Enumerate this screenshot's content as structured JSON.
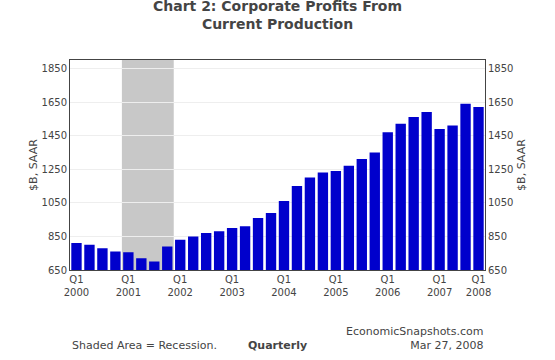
{
  "chart_data": {
    "type": "bar",
    "title": "Chart 2: Corporate Profits From\nCurrent Production",
    "ylabel": "$B, SAAR",
    "y2label": "$B, SAAR",
    "categories": [
      "Q1\n2000",
      null,
      null,
      null,
      "Q1\n2001",
      null,
      null,
      null,
      "Q1\n2002",
      null,
      null,
      null,
      "Q1\n2003",
      null,
      null,
      null,
      "Q1\n2004",
      null,
      null,
      null,
      "Q1\n2005",
      null,
      null,
      null,
      "Q1\n2006",
      null,
      null,
      null,
      "Q1\n2007",
      null,
      null,
      "Q1\n2008"
    ],
    "values": [
      810,
      800,
      780,
      760,
      755,
      720,
      700,
      790,
      830,
      850,
      870,
      880,
      900,
      910,
      960,
      990,
      1060,
      1150,
      1200,
      1230,
      1240,
      1270,
      1310,
      1350,
      1470,
      1520,
      1560,
      1590,
      1490,
      1510,
      1640,
      1620
    ],
    "color": "#0000CC",
    "ylim": [
      650,
      1900
    ],
    "yticks": [
      650,
      850,
      1050,
      1250,
      1450,
      1650,
      1850
    ],
    "y2lim": [
      650,
      1900
    ],
    "y2ticks": [
      650,
      850,
      1050,
      1250,
      1450,
      1650,
      1850
    ],
    "grid": true,
    "shaded": {
      "start": 4,
      "end": 7,
      "color": "#C8C8C8"
    },
    "annotations": [
      "Shaded Area = Recession.",
      "Quarterly",
      "EconomicSnapshots.com\nMar 27, 2008"
    ]
  }
}
